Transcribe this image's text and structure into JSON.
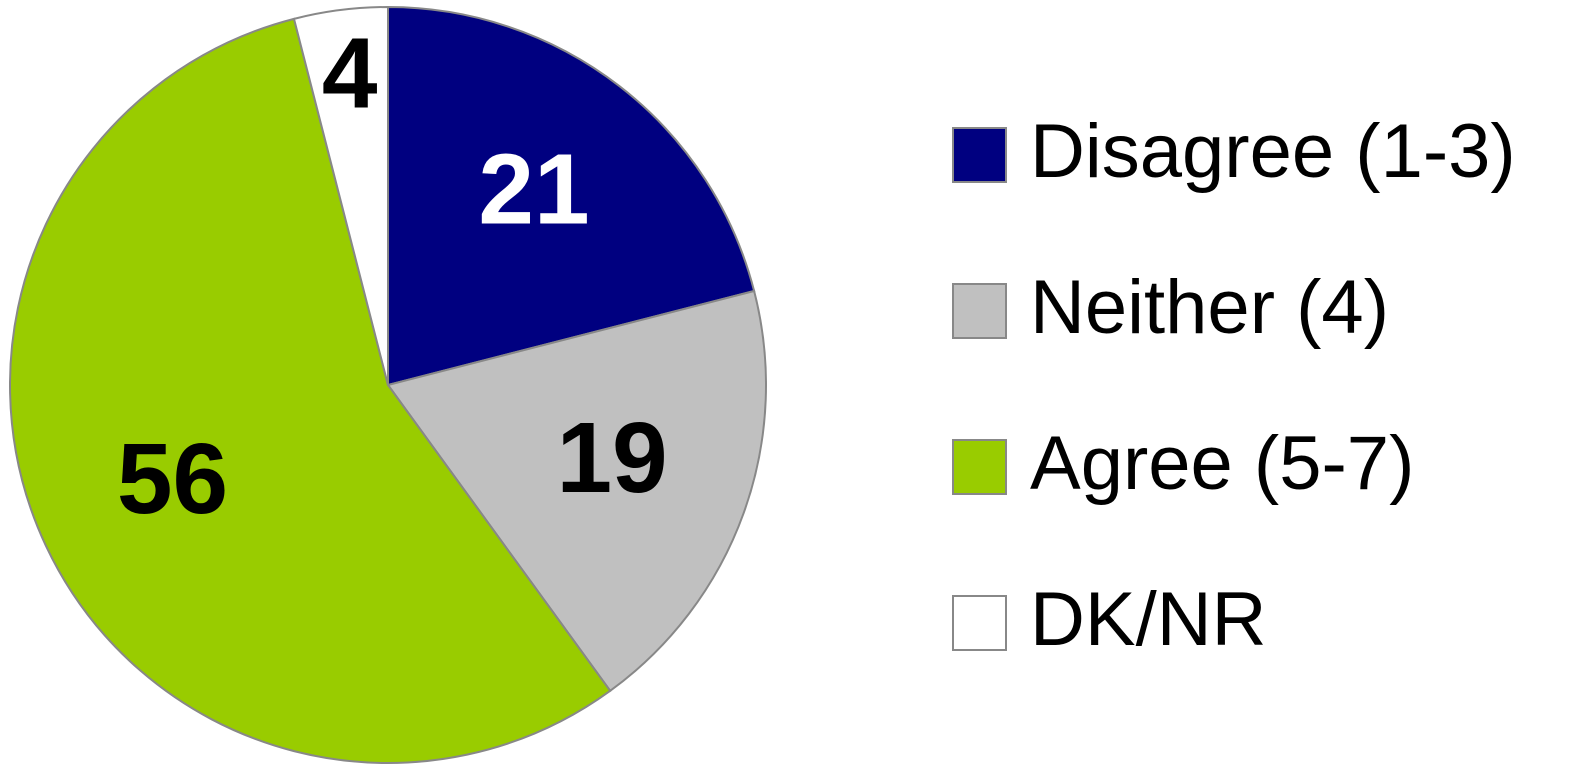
{
  "chart_data": {
    "type": "pie",
    "categories": [
      "Disagree (1-3)",
      "Neither (4)",
      "Agree (5-7)",
      "DK/NR"
    ],
    "values": [
      21,
      19,
      56,
      4
    ],
    "colors": [
      "#000080",
      "#c0c0c0",
      "#99cc00",
      "#ffffff"
    ],
    "legend": "right"
  }
}
